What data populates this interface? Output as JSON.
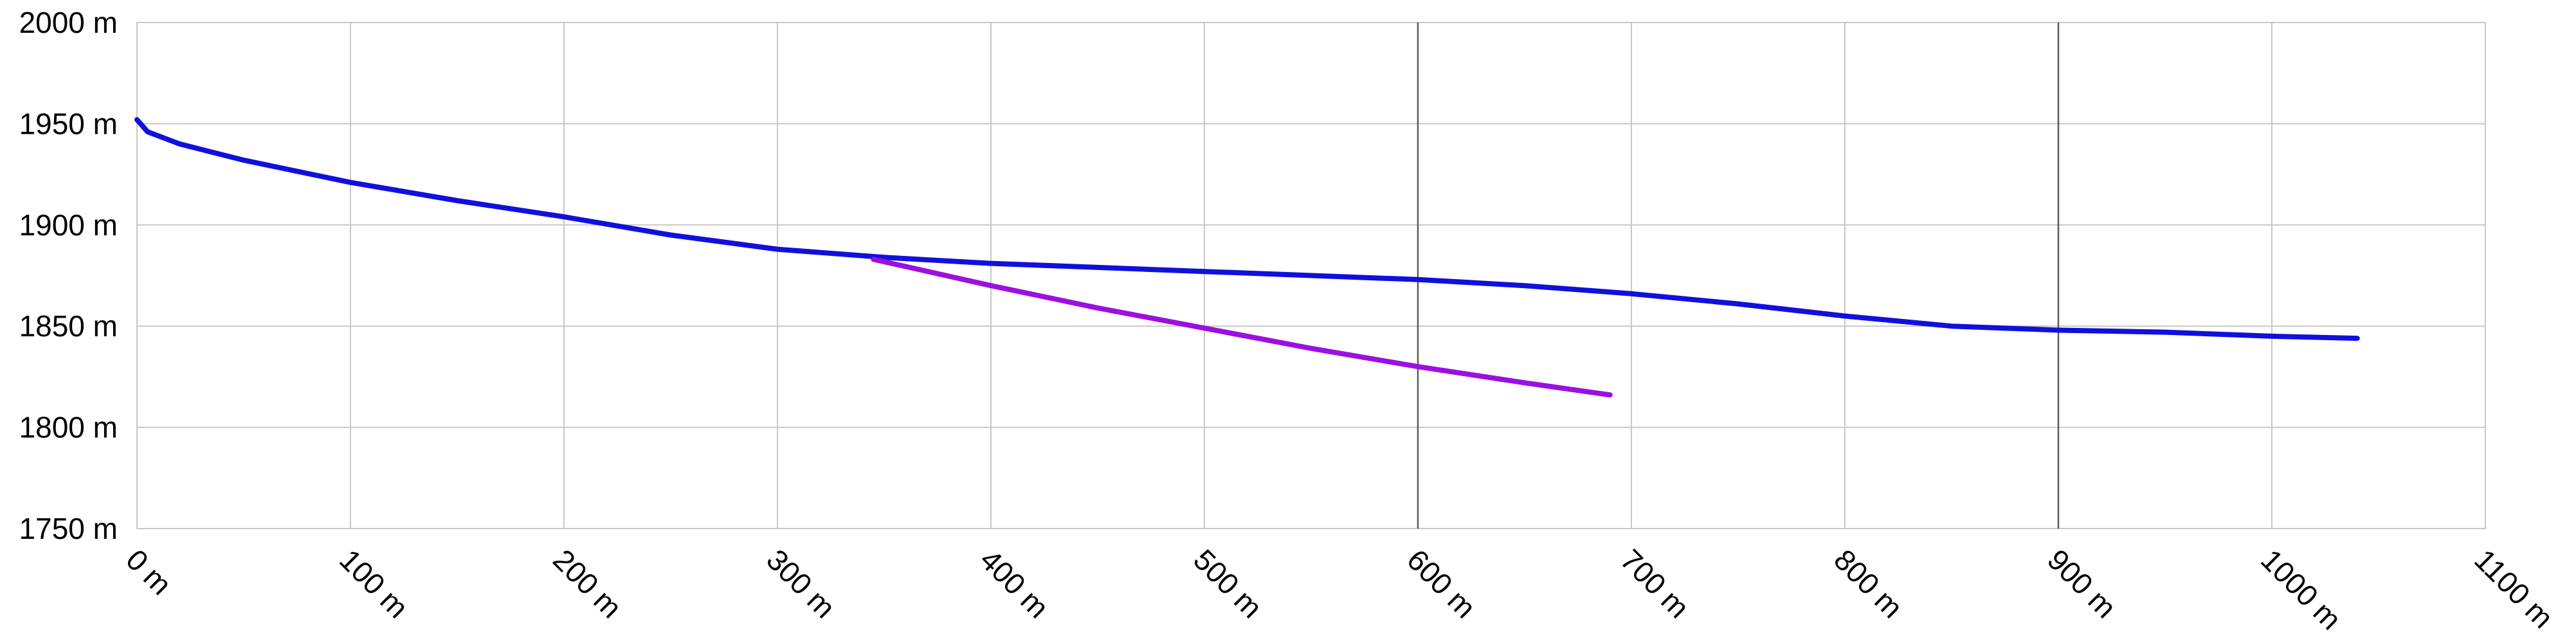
{
  "chart_data": {
    "type": "line",
    "title": "",
    "xlabel": "",
    "ylabel": "",
    "xlim": [
      0,
      1100
    ],
    "ylim": [
      1750,
      2000
    ],
    "x_ticks": [
      0,
      100,
      200,
      300,
      400,
      500,
      600,
      700,
      800,
      900,
      1000,
      1100
    ],
    "x_tick_labels": [
      "0 m",
      "100 m",
      "200 m",
      "300 m",
      "400 m",
      "500 m",
      "600 m",
      "700 m",
      "800 m",
      "900 m",
      "1000 m",
      "1100 m"
    ],
    "y_ticks": [
      1750,
      1800,
      1850,
      1900,
      1950,
      2000
    ],
    "y_tick_labels": [
      "1750 m",
      "1800 m",
      "1850 m",
      "1900 m",
      "1950 m",
      "2000 m"
    ],
    "major_x_gridlines": [
      600,
      900
    ],
    "grid": true,
    "legend": "none",
    "series": [
      {
        "color": "#1010dd",
        "x": [
          0,
          5,
          20,
          50,
          100,
          150,
          200,
          250,
          300,
          350,
          400,
          450,
          500,
          550,
          600,
          650,
          700,
          750,
          800,
          850,
          900,
          950,
          1000,
          1040
        ],
        "y": [
          1952,
          1946,
          1940,
          1932,
          1921,
          1912,
          1904,
          1895,
          1888,
          1884,
          1881,
          1879,
          1877,
          1875,
          1873,
          1870,
          1866,
          1861,
          1855,
          1850,
          1848,
          1847,
          1845,
          1844
        ]
      },
      {
        "color": "#9b10e0",
        "x": [
          345,
          400,
          450,
          500,
          550,
          600,
          650,
          690
        ],
        "y": [
          1883,
          1870,
          1859,
          1849,
          1839,
          1830,
          1822,
          1816
        ]
      }
    ]
  }
}
